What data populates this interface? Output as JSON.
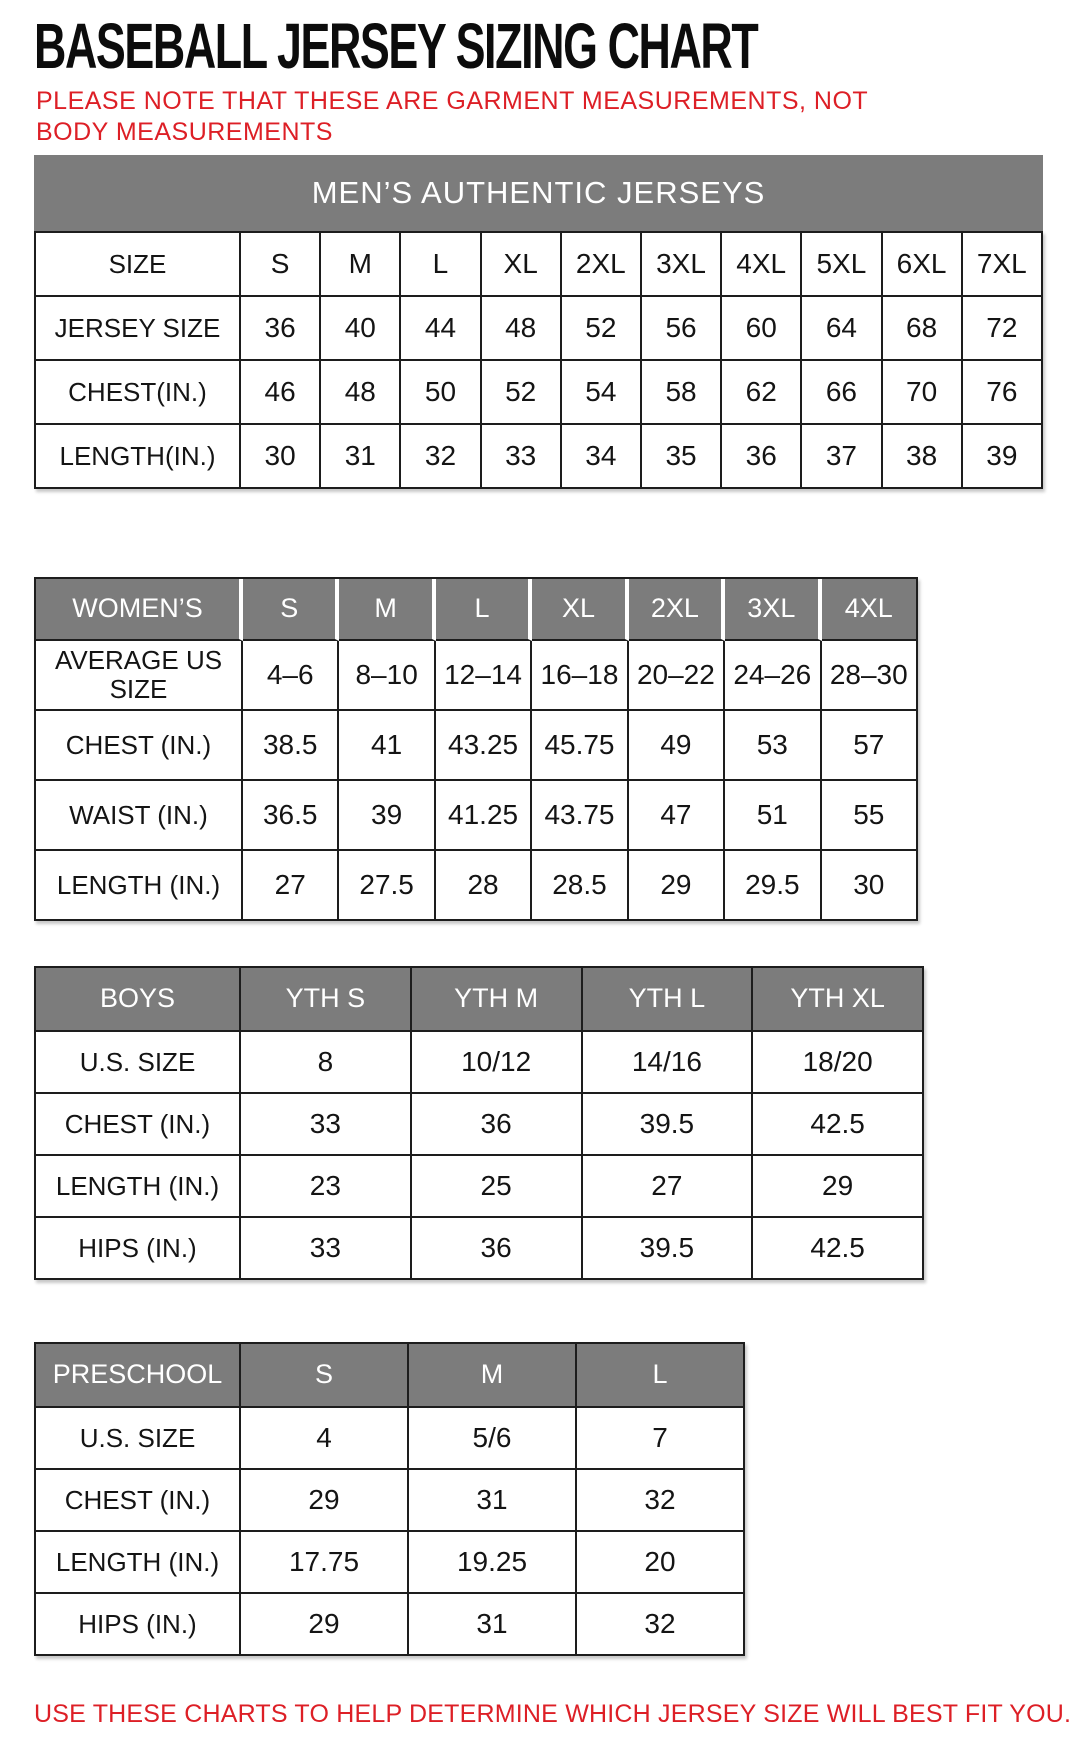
{
  "title": "BASEBALL JERSEY SIZING CHART",
  "note": "PLEASE NOTE THAT THESE ARE GARMENT MEASUREMENTS, NOT BODY MEASUREMENTS",
  "footer": "USE THESE CHARTS TO HELP DETERMINE WHICH JERSEY SIZE WILL BEST FIT YOU.",
  "colors": {
    "accent_red": "#dd1f26",
    "header_gray": "#7c7c7c",
    "border_black": "#1d1d1d"
  },
  "chart_data": [
    {
      "type": "table",
      "id": "mens",
      "banner": "MEN’S AUTHENTIC JERSEYS",
      "rows": [
        [
          "SIZE",
          "S",
          "M",
          "L",
          "XL",
          "2XL",
          "3XL",
          "4XL",
          "5XL",
          "6XL",
          "7XL"
        ],
        [
          "JERSEY SIZE",
          "36",
          "40",
          "44",
          "48",
          "52",
          "56",
          "60",
          "64",
          "68",
          "72"
        ],
        [
          "CHEST(IN.)",
          "46",
          "48",
          "50",
          "52",
          "54",
          "58",
          "62",
          "66",
          "70",
          "76"
        ],
        [
          "LENGTH(IN.)",
          "30",
          "31",
          "32",
          "33",
          "34",
          "35",
          "36",
          "37",
          "38",
          "39"
        ]
      ]
    },
    {
      "type": "table",
      "id": "womens",
      "header": [
        "WOMEN’S",
        "S",
        "M",
        "L",
        "XL",
        "2XL",
        "3XL",
        "4XL"
      ],
      "rows": [
        [
          "AVERAGE US SIZE",
          "4–6",
          "8–10",
          "12–14",
          "16–18",
          "20–22",
          "24–26",
          "28–30"
        ],
        [
          "CHEST (IN.)",
          "38.5",
          "41",
          "43.25",
          "45.75",
          "49",
          "53",
          "57"
        ],
        [
          "WAIST (IN.)",
          "36.5",
          "39",
          "41.25",
          "43.75",
          "47",
          "51",
          "55"
        ],
        [
          "LENGTH (IN.)",
          "27",
          "27.5",
          "28",
          "28.5",
          "29",
          "29.5",
          "30"
        ]
      ]
    },
    {
      "type": "table",
      "id": "boys",
      "header": [
        "BOYS",
        "YTH S",
        "YTH M",
        "YTH L",
        "YTH XL"
      ],
      "rows": [
        [
          "U.S. SIZE",
          "8",
          "10/12",
          "14/16",
          "18/20"
        ],
        [
          "CHEST (IN.)",
          "33",
          "36",
          "39.5",
          "42.5"
        ],
        [
          "LENGTH (IN.)",
          "23",
          "25",
          "27",
          "29"
        ],
        [
          "HIPS (IN.)",
          "33",
          "36",
          "39.5",
          "42.5"
        ]
      ]
    },
    {
      "type": "table",
      "id": "preschool",
      "header": [
        "PRESCHOOL",
        "S",
        "M",
        "L"
      ],
      "rows": [
        [
          "U.S. SIZE",
          "4",
          "5/6",
          "7"
        ],
        [
          "CHEST (IN.)",
          "29",
          "31",
          "32"
        ],
        [
          "LENGTH (IN.)",
          "17.75",
          "19.25",
          "20"
        ],
        [
          "HIPS (IN.)",
          "29",
          "31",
          "32"
        ]
      ]
    }
  ]
}
